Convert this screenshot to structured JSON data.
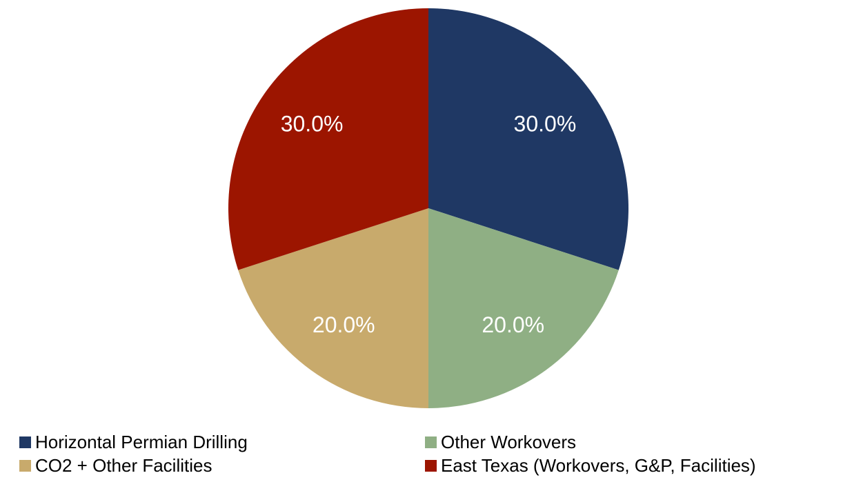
{
  "chart_data": {
    "type": "pie",
    "title": "",
    "slices": [
      {
        "label": "Horizontal Permian Drilling",
        "value": 30.0,
        "display": "30.0%",
        "color": "#1f3864"
      },
      {
        "label": "Other Workovers",
        "value": 20.0,
        "display": "20.0%",
        "color": "#8faf84"
      },
      {
        "label": "CO2 + Other Facilities",
        "value": 20.0,
        "display": "20.0%",
        "color": "#c8aa6c"
      },
      {
        "label": "East Texas (Workovers, G&P, Facilities)",
        "value": 30.0,
        "display": "30.0%",
        "color": "#9c1500"
      }
    ],
    "start_angle_deg": 0,
    "direction": "clockwise",
    "legend_position": "bottom",
    "legend_order": [
      0,
      1,
      2,
      3
    ]
  }
}
